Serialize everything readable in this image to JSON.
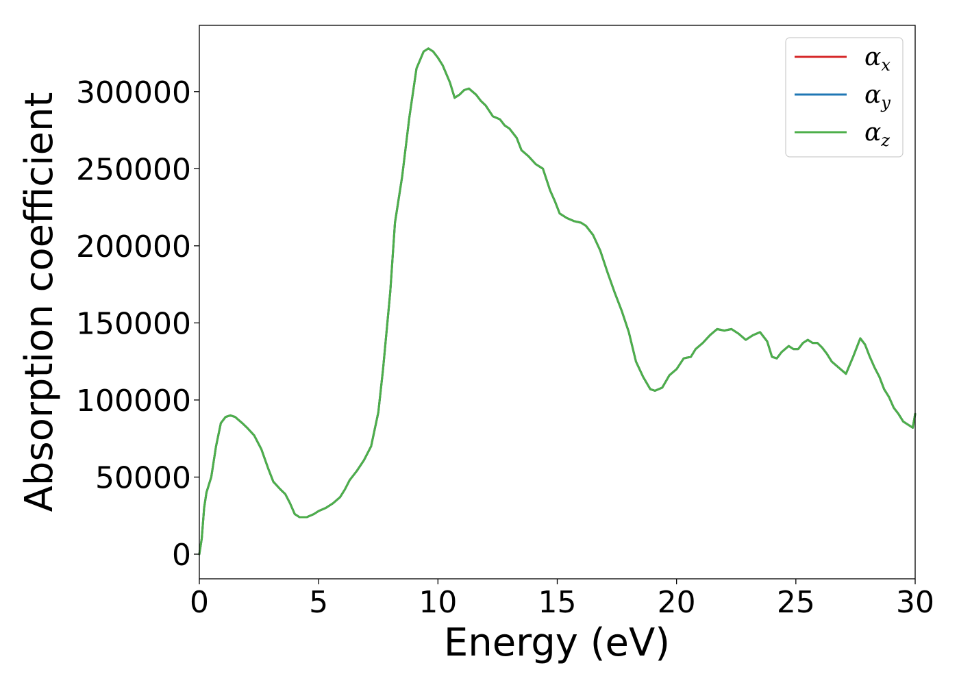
{
  "chart_data": {
    "type": "line",
    "xlabel": "Energy (eV)",
    "ylabel": "Absorption coefficient",
    "xlim": [
      0,
      30
    ],
    "ylim": [
      -16000,
      343000
    ],
    "x_ticks": [
      0,
      5,
      10,
      15,
      20,
      25,
      30
    ],
    "y_ticks": [
      0,
      50000,
      100000,
      150000,
      200000,
      250000,
      300000
    ],
    "grid": false,
    "legend_position": "top-right",
    "series": [
      {
        "name": "α",
        "subscript": "x",
        "color": "#d62728"
      },
      {
        "name": "α",
        "subscript": "y",
        "color": "#1f77b4"
      },
      {
        "name": "α",
        "subscript": "z",
        "color": "#4daf4a"
      }
    ],
    "x": [
      0.0,
      0.1,
      0.2,
      0.3,
      0.5,
      0.7,
      0.9,
      1.1,
      1.3,
      1.5,
      1.8,
      2.0,
      2.3,
      2.6,
      2.9,
      3.1,
      3.4,
      3.6,
      3.8,
      4.0,
      4.2,
      4.5,
      4.8,
      5.0,
      5.3,
      5.6,
      5.9,
      6.1,
      6.3,
      6.6,
      6.9,
      7.2,
      7.5,
      7.7,
      8.0,
      8.2,
      8.5,
      8.8,
      9.1,
      9.4,
      9.6,
      9.8,
      10.0,
      10.2,
      10.5,
      10.7,
      10.9,
      11.1,
      11.3,
      11.6,
      11.8,
      12.0,
      12.3,
      12.6,
      12.8,
      13.0,
      13.3,
      13.5,
      13.8,
      14.1,
      14.4,
      14.7,
      14.9,
      15.1,
      15.4,
      15.7,
      16.0,
      16.2,
      16.5,
      16.8,
      17.1,
      17.4,
      17.7,
      18.0,
      18.3,
      18.6,
      18.9,
      19.1,
      19.4,
      19.7,
      20.0,
      20.3,
      20.6,
      20.8,
      21.1,
      21.4,
      21.7,
      22.0,
      22.3,
      22.6,
      22.9,
      23.2,
      23.5,
      23.8,
      24.0,
      24.2,
      24.4,
      24.7,
      24.9,
      25.1,
      25.3,
      25.5,
      25.7,
      25.9,
      26.1,
      26.3,
      26.5,
      26.8,
      27.1,
      27.4,
      27.7,
      27.9,
      28.1,
      28.3,
      28.5,
      28.7,
      28.9,
      29.1,
      29.3,
      29.5,
      29.7,
      29.9,
      30.0
    ],
    "y": [
      0,
      10000,
      30000,
      40000,
      50000,
      70000,
      85000,
      89000,
      90000,
      89000,
      85000,
      82000,
      77000,
      68000,
      55000,
      47000,
      42000,
      39000,
      33000,
      26000,
      24000,
      24000,
      26000,
      28000,
      30000,
      33000,
      37000,
      42000,
      48000,
      54000,
      61000,
      70000,
      92000,
      120000,
      170000,
      215000,
      245000,
      283000,
      315000,
      326000,
      328000,
      326000,
      322000,
      317000,
      306000,
      296000,
      298000,
      301000,
      302000,
      298000,
      294000,
      291000,
      284000,
      282000,
      278000,
      276000,
      270000,
      262000,
      258000,
      253000,
      250000,
      236000,
      229000,
      221000,
      218000,
      216000,
      215000,
      213000,
      207000,
      197000,
      183000,
      170000,
      158000,
      144000,
      125000,
      115000,
      107000,
      106000,
      108000,
      116000,
      120000,
      127000,
      128000,
      133000,
      137000,
      142000,
      146000,
      145000,
      146000,
      143000,
      139000,
      142000,
      144000,
      138000,
      128000,
      127000,
      131000,
      135000,
      133000,
      133000,
      137000,
      139000,
      137000,
      137000,
      134000,
      130000,
      125000,
      121000,
      117000,
      128000,
      140000,
      136000,
      128000,
      121000,
      115000,
      107000,
      102000,
      95000,
      91000,
      86000,
      84000,
      82000,
      91000
    ]
  }
}
